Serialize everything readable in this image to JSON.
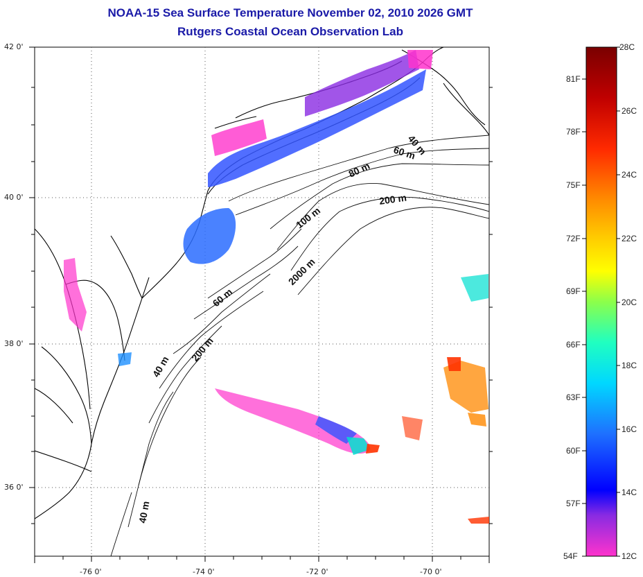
{
  "title": {
    "line1": "NOAA-15 Sea Surface Temperature November 02, 2010 2026 GMT",
    "line2": "Rutgers Coastal Ocean Observation Lab"
  },
  "axes": {
    "lat_labels": [
      "42 0'",
      "40 0'",
      "38 0'",
      "36 0'"
    ],
    "lon_labels": [
      "-76 0'",
      "-74 0'",
      "-72 0'",
      "-70 0'"
    ]
  },
  "depth_contours": [
    "40 m",
    "60 m",
    "80 m",
    "200 m",
    "100 m",
    "2000 m",
    "60 m",
    "200 m",
    "40 m",
    "40 m"
  ],
  "colorbar": {
    "celsius": [
      "28C",
      "26C",
      "24C",
      "22C",
      "20C",
      "18C",
      "16C",
      "14C",
      "12C"
    ],
    "fahrenheit": [
      "81F",
      "78F",
      "75F",
      "72F",
      "69F",
      "66F",
      "63F",
      "60F",
      "57F",
      "54F"
    ],
    "stops": [
      "#7a0000",
      "#d40000",
      "#ff5500",
      "#ffa500",
      "#ffff00",
      "#8cff4a",
      "#00ffd0",
      "#1e90ff",
      "#0000ff",
      "#8a2be2",
      "#ff1493",
      "#ff33cc"
    ]
  },
  "sst_colors": {
    "nearshore": "#ff33cc",
    "cool": "#3355ff",
    "cold": "#8a2be2",
    "mid": "#00e0d0",
    "warm": "#ff8800",
    "hot": "#ff3300"
  }
}
